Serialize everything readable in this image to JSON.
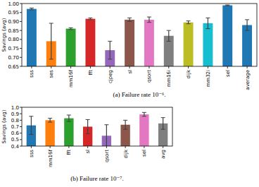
{
  "chart_data": [
    {
      "type": "bar",
      "caption": "(a) Failure rate 10⁻⁶.",
      "y_label": "Savings (avg)",
      "categories": [
        "sss",
        "ses",
        "mm16f",
        "fft",
        "cjpeg",
        "sl",
        "qsort",
        "mm16i",
        "dijk",
        "mm32i",
        "sel",
        "average"
      ],
      "values": [
        0.97,
        0.79,
        0.86,
        0.915,
        0.74,
        0.91,
        0.91,
        0.82,
        0.895,
        0.89,
        0.99,
        0.88
      ],
      "errors": [
        0.005,
        0.1,
        0.005,
        0.005,
        0.05,
        0.01,
        0.015,
        0.03,
        0.008,
        0.03,
        0.002,
        0.03
      ],
      "colors": [
        "#1f77b4",
        "#ff7f0e",
        "#2ca02c",
        "#d62728",
        "#9467bd",
        "#8c564b",
        "#e377c2",
        "#7f7f7f",
        "#bcbd22",
        "#17becf",
        "#1f77b4",
        "#1f77b4"
      ],
      "ylim": [
        0.65,
        1.0
      ],
      "yticks": [
        0.65,
        {
          "value": 0.7,
          "label": "0.70"
        },
        0.75,
        {
          "value": 0.8,
          "label": "0.80"
        },
        0.85,
        {
          "value": 0.9,
          "label": "0.90"
        },
        0.95,
        {
          "value": 1.0,
          "label": "1.00"
        }
      ],
      "grid": false
    },
    {
      "type": "bar",
      "caption": "(b) Failure rate 10⁻⁷.",
      "y_label": "Savings (avg)",
      "categories": [
        "sss",
        "mm16f",
        "fft",
        "sl",
        "qsort",
        "dijk",
        "sel",
        "avg"
      ],
      "values": [
        0.72,
        0.8,
        0.83,
        0.7,
        0.56,
        0.73,
        0.89,
        0.75
      ],
      "errors": [
        0.14,
        0.03,
        0.05,
        0.11,
        0.17,
        0.07,
        0.03,
        0.09
      ],
      "colors": [
        "#1f77b4",
        "#ff7f0e",
        "#2ca02c",
        "#d62728",
        "#9467bd",
        "#8c564b",
        "#e377c2",
        "#7f7f7f"
      ],
      "ylim": [
        0.4,
        1.0
      ],
      "yticks": [
        0.4,
        0.5,
        0.6,
        0.7,
        0.8,
        0.9,
        {
          "value": 1.0,
          "label": "1.0"
        }
      ],
      "grid": false
    }
  ]
}
